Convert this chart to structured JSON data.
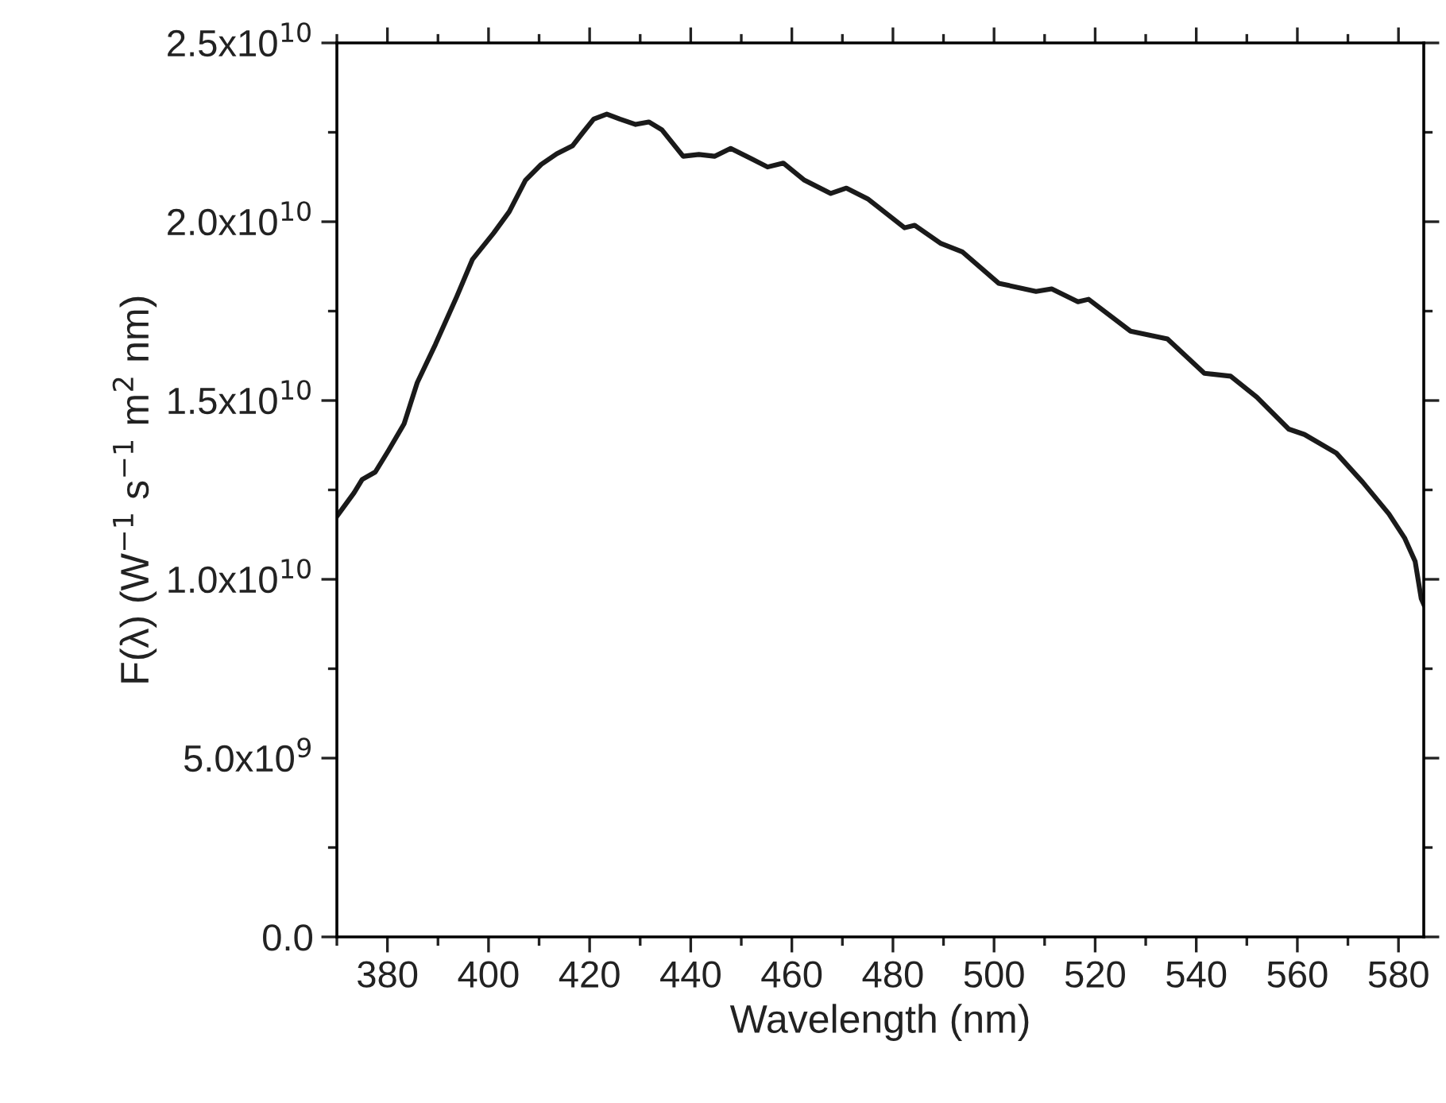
{
  "chart_data": {
    "type": "line",
    "xlabel": "Wavelength (nm)",
    "ylabel": "F(λ) (W$^{−1}$ s$^{−1}$ m$^{2}$ nm)",
    "xlim": [
      370,
      585
    ],
    "ylim": [
      0,
      25000000000.0
    ],
    "xticks": [
      380,
      400,
      420,
      440,
      460,
      480,
      500,
      520,
      540,
      560,
      580,
      {
        "value": 370,
        "label": null
      },
      {
        "value": 390,
        "label": null
      },
      {
        "value": 410,
        "label": null
      },
      {
        "value": 430,
        "label": null
      },
      {
        "value": 450,
        "label": null
      },
      {
        "value": 470,
        "label": null
      },
      {
        "value": 490,
        "label": null
      },
      {
        "value": 510,
        "label": null
      },
      {
        "value": 530,
        "label": null
      },
      {
        "value": 550,
        "label": null
      },
      {
        "value": 570,
        "label": null
      }
    ],
    "yticks": [
      {
        "value": 0,
        "label": "0.0"
      },
      {
        "value": 5000000000.0,
        "label": "5.0x10$^{9}$"
      },
      {
        "value": 10000000000.0,
        "label": "1.0x10$^{10}$"
      },
      {
        "value": 15000000000.0,
        "label": "1.5x10$^{10}$"
      },
      {
        "value": 20000000000.0,
        "label": "2.0x10$^{10}$"
      },
      {
        "value": 25000000000.0,
        "label": "2.5x10$^{10}$"
      },
      {
        "value": 2500000000.0,
        "label": null
      },
      {
        "value": 7500000000.0,
        "label": null
      },
      {
        "value": 12500000000.0,
        "label": null
      },
      {
        "value": 17500000000.0,
        "label": null
      },
      {
        "value": 22500000000.0,
        "label": null
      }
    ],
    "grid": false,
    "legend": false,
    "marker": "none",
    "line_style": "solid",
    "series": [
      {
        "color": "#1a1a1a",
        "x": [
          370,
          373.4,
          375.0,
          377.6,
          380.2,
          383.3,
          385.9,
          389.5,
          393.7,
          396.8,
          401,
          404.1,
          407.3,
          410.4,
          413.5,
          416.6,
          418.7,
          420.8,
          423.4,
          426,
          429.1,
          431.7,
          434.3,
          438.5,
          441.6,
          444.7,
          447.9,
          452,
          455.2,
          458.3,
          462.5,
          467.7,
          470.8,
          475,
          477,
          482.3,
          484.3,
          489.5,
          493.7,
          500.9,
          508.3,
          511.4,
          516.6,
          518.7,
          527,
          534.3,
          541.6,
          546.8,
          552,
          558.3,
          561.4,
          567.7,
          572.9,
          578.1,
          581.2,
          583.3,
          584.5,
          585
        ],
        "values": [
          11760000000.0,
          12420000000.0,
          12790000000.0,
          13000000000.0,
          13600000000.0,
          14350000000.0,
          15500000000.0,
          16570000000.0,
          17900000000.0,
          18940000000.0,
          19680000000.0,
          20280000000.0,
          21160000000.0,
          21600000000.0,
          21900000000.0,
          22120000000.0,
          22500000000.0,
          22870000000.0,
          23010000000.0,
          22870000000.0,
          22720000000.0,
          22790000000.0,
          22570000000.0,
          21830000000.0,
          21880000000.0,
          21830000000.0,
          22050000000.0,
          21760000000.0,
          21530000000.0,
          21640000000.0,
          21160000000.0,
          20790000000.0,
          20940000000.0,
          20640000000.0,
          20420000000.0,
          19830000000.0,
          19900000000.0,
          19390000000.0,
          19160000000.0,
          18280000000.0,
          18050000000.0,
          18120000000.0,
          17760000000.0,
          17830000000.0,
          16940000000.0,
          16720000000.0,
          15760000000.0,
          15680000000.0,
          15090000000.0,
          14200000000.0,
          14050000000.0,
          13530000000.0,
          12720000000.0,
          11830000000.0,
          11160000000.0,
          10500000000.0,
          9460000000.0,
          9300000000.0
        ]
      }
    ]
  }
}
